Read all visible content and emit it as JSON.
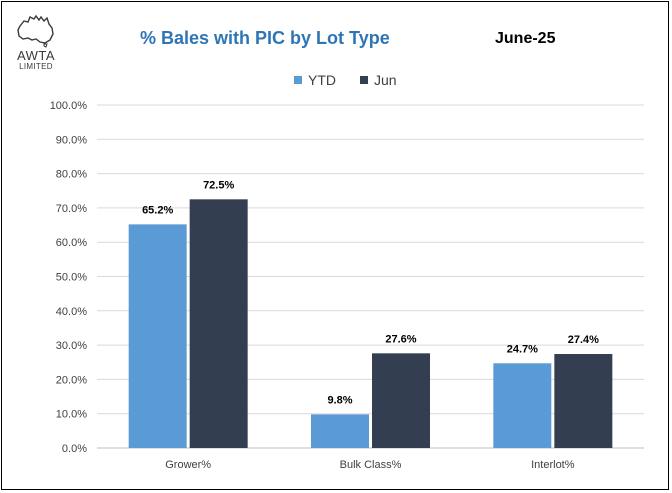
{
  "header": {
    "logo_text": "AWTA",
    "logo_subtext": "LIMITED",
    "title": "% Bales with PIC by Lot Type",
    "period": "June-25"
  },
  "colors": {
    "ytd": "#5b9bd5",
    "jun": "#333f50",
    "grid": "#d9d9d9",
    "title": "#2e75b6"
  },
  "chart_data": {
    "type": "bar",
    "title": "% Bales with PIC by Lot Type",
    "subtitle": "June-25",
    "categories": [
      "Grower%",
      "Bulk Class%",
      "Interlot%"
    ],
    "series": [
      {
        "name": "YTD",
        "values": [
          65.2,
          9.8,
          24.7
        ],
        "labels": [
          "65.2%",
          "9.8%",
          "24.7%"
        ],
        "color": "#5b9bd5"
      },
      {
        "name": "Jun",
        "values": [
          72.5,
          27.6,
          27.4
        ],
        "labels": [
          "72.5%",
          "27.6%",
          "27.4%"
        ],
        "color": "#333f50"
      }
    ],
    "ylim": [
      0,
      100
    ],
    "yticks": [
      "0.0%",
      "10.0%",
      "20.0%",
      "30.0%",
      "40.0%",
      "50.0%",
      "60.0%",
      "70.0%",
      "80.0%",
      "90.0%",
      "100.0%"
    ],
    "grid": true,
    "legend": "top-center",
    "xlabel": "",
    "ylabel": ""
  }
}
